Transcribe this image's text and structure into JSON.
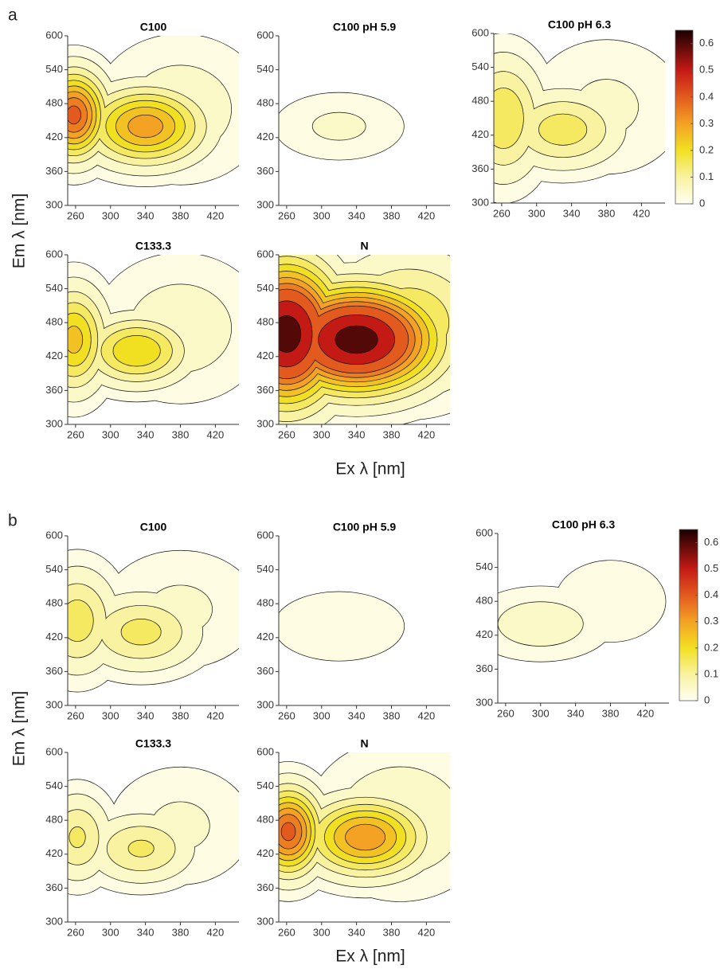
{
  "colormap": [
    {
      "value": 0,
      "color": "#fffff2"
    },
    {
      "value": 0.1,
      "color": "#f9f2a0"
    },
    {
      "value": 0.2,
      "color": "#f1e022"
    },
    {
      "value": 0.3,
      "color": "#f3a224"
    },
    {
      "value": 0.4,
      "color": "#e35a1e"
    },
    {
      "value": 0.5,
      "color": "#c41a16"
    },
    {
      "value": 0.65,
      "color": "#1a0000"
    }
  ],
  "panels": [
    {
      "label": "a",
      "xlabel": "Ex λ [nm]",
      "ylabel": "Em λ [nm]",
      "clim": [
        0,
        0.65
      ],
      "cticks": [
        0,
        0.1,
        0.2,
        0.3,
        0.4,
        0.5,
        0.6
      ],
      "levels": [
        0.02,
        0.05,
        0.1,
        0.15,
        0.2,
        0.25,
        0.3,
        0.35,
        0.4,
        0.5,
        0.6
      ],
      "chart_data": [
        {
          "type": "contour",
          "title": "C100",
          "xlim": [
            251,
            447
          ],
          "ylim": [
            300,
            600
          ],
          "xticks": [
            260,
            300,
            340,
            380,
            420
          ],
          "yticks": [
            300,
            360,
            420,
            480,
            540,
            600
          ],
          "peaks": [
            {
              "x": 258,
              "y": 460,
              "z": 0.42,
              "sx": 25,
              "sy": 50
            },
            {
              "x": 340,
              "y": 440,
              "z": 0.33,
              "sx": 45,
              "sy": 45
            },
            {
              "x": 380,
              "y": 470,
              "z": 0.08,
              "sx": 60,
              "sy": 80
            }
          ]
        },
        {
          "type": "contour",
          "title": "C100 pH 5.9",
          "xlim": [
            251,
            447
          ],
          "ylim": [
            300,
            600
          ],
          "xticks": [
            260,
            300,
            340,
            380,
            420
          ],
          "yticks": [
            300,
            360,
            420,
            480,
            540,
            600
          ],
          "peaks": [
            {
              "x": 320,
              "y": 440,
              "z": 0.06,
              "sx": 50,
              "sy": 40
            }
          ]
        },
        {
          "type": "contour",
          "title": "C100 pH 6.3",
          "xlim": [
            251,
            447
          ],
          "ylim": [
            300,
            600
          ],
          "xticks": [
            260,
            300,
            340,
            380,
            420
          ],
          "yticks": [
            300,
            360,
            420,
            480,
            540,
            600
          ],
          "peaks": [
            {
              "x": 262,
              "y": 450,
              "z": 0.2,
              "sx": 30,
              "sy": 70
            },
            {
              "x": 330,
              "y": 430,
              "z": 0.18,
              "sx": 45,
              "sy": 45
            },
            {
              "x": 380,
              "y": 470,
              "z": 0.06,
              "sx": 60,
              "sy": 80
            }
          ]
        },
        {
          "type": "contour",
          "title": "C133.3",
          "xlim": [
            251,
            447
          ],
          "ylim": [
            300,
            600
          ],
          "xticks": [
            260,
            300,
            340,
            380,
            420
          ],
          "yticks": [
            300,
            360,
            420,
            480,
            540,
            600
          ],
          "peaks": [
            {
              "x": 258,
              "y": 450,
              "z": 0.27,
              "sx": 25,
              "sy": 60
            },
            {
              "x": 330,
              "y": 430,
              "z": 0.25,
              "sx": 40,
              "sy": 40
            },
            {
              "x": 380,
              "y": 470,
              "z": 0.08,
              "sx": 60,
              "sy": 80
            }
          ]
        },
        {
          "type": "contour",
          "title": "N",
          "xlim": [
            251,
            447
          ],
          "ylim": [
            300,
            600
          ],
          "xticks": [
            260,
            300,
            340,
            380,
            420
          ],
          "yticks": [
            300,
            360,
            420,
            480,
            540,
            600
          ],
          "peaks": [
            {
              "x": 260,
              "y": 460,
              "z": 0.65,
              "sx": 40,
              "sy": 80
            },
            {
              "x": 340,
              "y": 450,
              "z": 0.65,
              "sx": 60,
              "sy": 60
            },
            {
              "x": 400,
              "y": 480,
              "z": 0.2,
              "sx": 60,
              "sy": 80
            }
          ]
        }
      ]
    },
    {
      "label": "b",
      "xlabel": "Ex λ [nm]",
      "ylabel": "Em λ [nm]",
      "clim": [
        0,
        0.65
      ],
      "cticks": [
        0,
        0.1,
        0.2,
        0.3,
        0.4,
        0.5,
        0.6
      ],
      "levels": [
        0.02,
        0.05,
        0.1,
        0.15,
        0.2,
        0.25,
        0.3,
        0.35,
        0.4,
        0.5,
        0.6
      ],
      "chart_data": [
        {
          "type": "contour",
          "title": "C100",
          "xlim": [
            251,
            447
          ],
          "ylim": [
            300,
            600
          ],
          "xticks": [
            260,
            300,
            340,
            380,
            420
          ],
          "yticks": [
            300,
            360,
            420,
            480,
            540,
            600
          ],
          "peaks": [
            {
              "x": 262,
              "y": 450,
              "z": 0.18,
              "sx": 30,
              "sy": 60
            },
            {
              "x": 335,
              "y": 430,
              "z": 0.17,
              "sx": 45,
              "sy": 45
            },
            {
              "x": 380,
              "y": 470,
              "z": 0.06,
              "sx": 60,
              "sy": 70
            }
          ]
        },
        {
          "type": "contour",
          "title": "C100 pH 5.9",
          "xlim": [
            251,
            447
          ],
          "ylim": [
            300,
            600
          ],
          "xticks": [
            260,
            300,
            340,
            380,
            420
          ],
          "yticks": [
            300,
            360,
            420,
            480,
            540,
            600
          ],
          "peaks": [
            {
              "x": 320,
              "y": 440,
              "z": 0.05,
              "sx": 55,
              "sy": 45
            }
          ]
        },
        {
          "type": "contour",
          "title": "C100 pH 6.3",
          "xlim": [
            251,
            447
          ],
          "ylim": [
            300,
            600
          ],
          "xticks": [
            260,
            300,
            340,
            380,
            420
          ],
          "yticks": [
            300,
            360,
            420,
            480,
            540,
            600
          ],
          "peaks": [
            {
              "x": 300,
              "y": 440,
              "z": 0.08,
              "sx": 50,
              "sy": 40
            },
            {
              "x": 380,
              "y": 480,
              "z": 0.03,
              "sx": 70,
              "sy": 80
            }
          ]
        },
        {
          "type": "contour",
          "title": "C133.3",
          "xlim": [
            251,
            447
          ],
          "ylim": [
            300,
            600
          ],
          "xticks": [
            260,
            300,
            340,
            380,
            420
          ],
          "yticks": [
            300,
            360,
            420,
            480,
            540,
            600
          ],
          "peaks": [
            {
              "x": 262,
              "y": 450,
              "z": 0.16,
              "sx": 25,
              "sy": 50
            },
            {
              "x": 335,
              "y": 430,
              "z": 0.16,
              "sx": 40,
              "sy": 40
            },
            {
              "x": 380,
              "y": 470,
              "z": 0.06,
              "sx": 55,
              "sy": 70
            }
          ]
        },
        {
          "type": "contour",
          "title": "N",
          "xlim": [
            251,
            447
          ],
          "ylim": [
            300,
            600
          ],
          "xticks": [
            260,
            300,
            340,
            380,
            420
          ],
          "yticks": [
            300,
            360,
            420,
            480,
            540,
            600
          ],
          "peaks": [
            {
              "x": 262,
              "y": 460,
              "z": 0.42,
              "sx": 25,
              "sy": 50
            },
            {
              "x": 350,
              "y": 450,
              "z": 0.34,
              "sx": 45,
              "sy": 45
            },
            {
              "x": 390,
              "y": 480,
              "z": 0.1,
              "sx": 60,
              "sy": 80
            }
          ]
        }
      ]
    }
  ]
}
